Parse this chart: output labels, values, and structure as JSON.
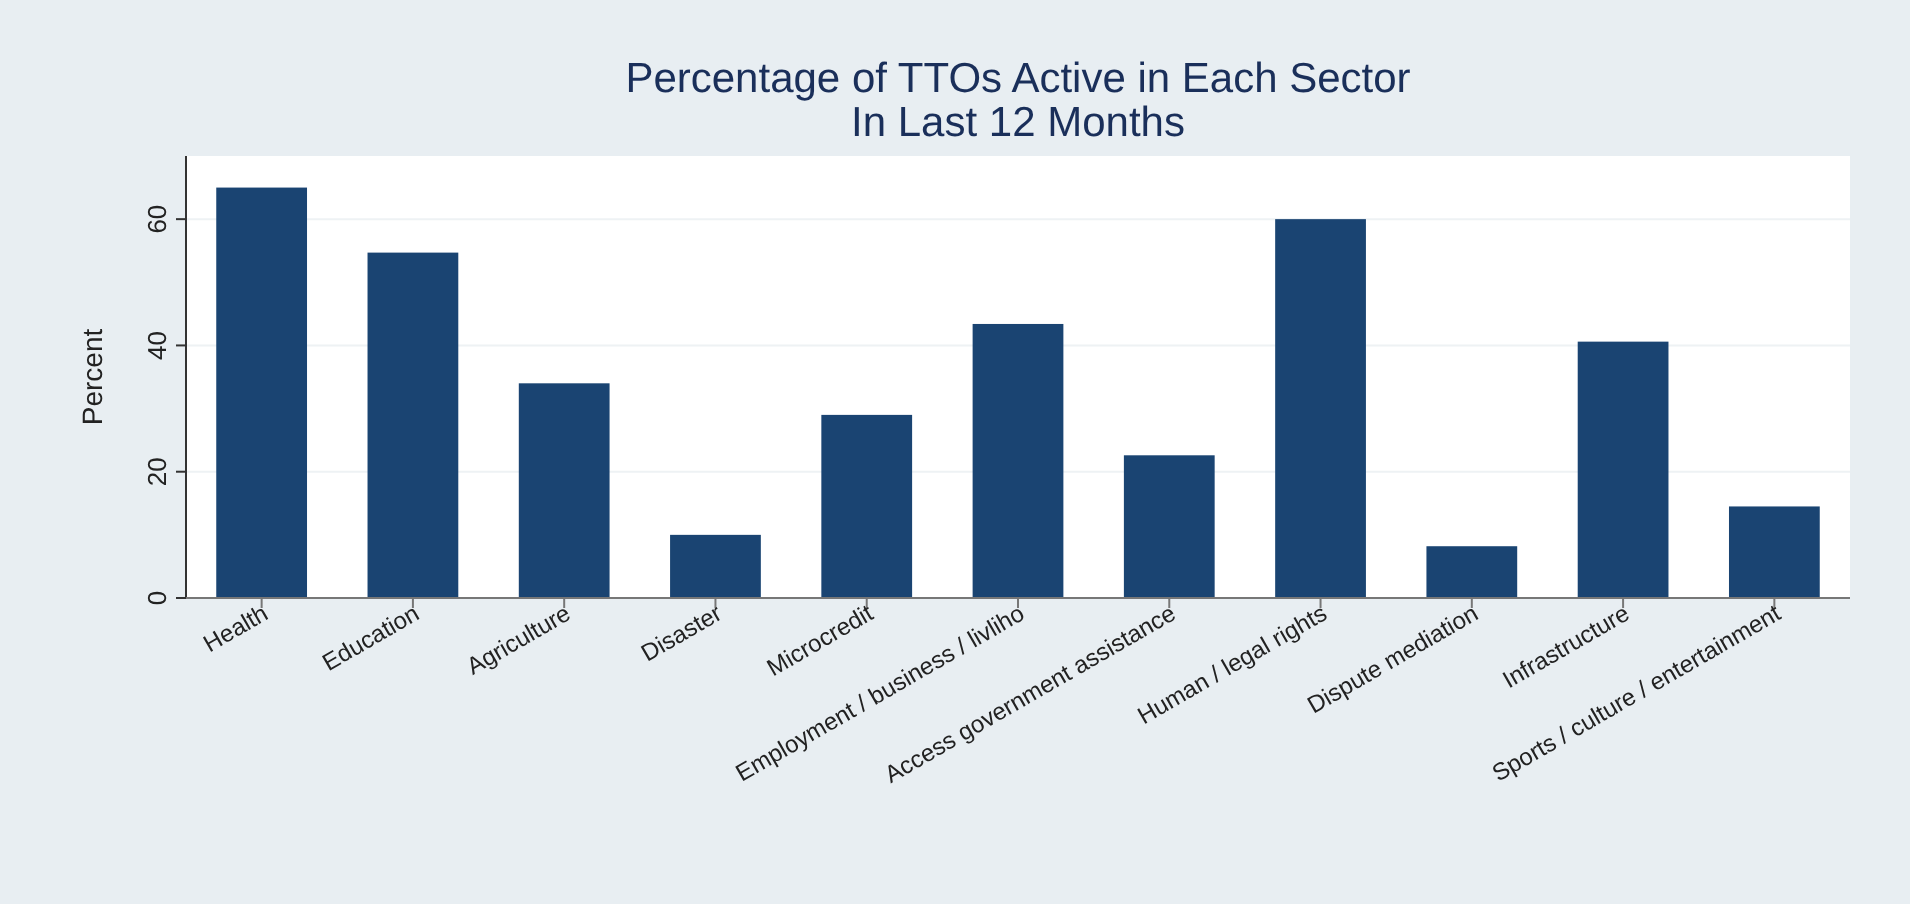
{
  "chart_data": {
    "type": "bar",
    "title": "Percentage of TTOs Active in Each Sector",
    "subtitle": "In Last 12 Months",
    "ylabel": "Percent",
    "categories": [
      "Health",
      "Education",
      "Agriculture",
      "Disaster",
      "Microcredit",
      "Employment / business / livliho",
      "Access government assistance",
      "Human / legal rights",
      "Dispute mediation",
      "Infrastructure",
      "Sports / culture / entertainment"
    ],
    "values": [
      65,
      54.7,
      34,
      10,
      29,
      43.4,
      22.6,
      60,
      8.2,
      40.6,
      14.5
    ],
    "color": "#1a4472",
    "ylim": [
      0,
      70
    ],
    "yticks": [
      0,
      20,
      40,
      60
    ],
    "grid": "y"
  }
}
